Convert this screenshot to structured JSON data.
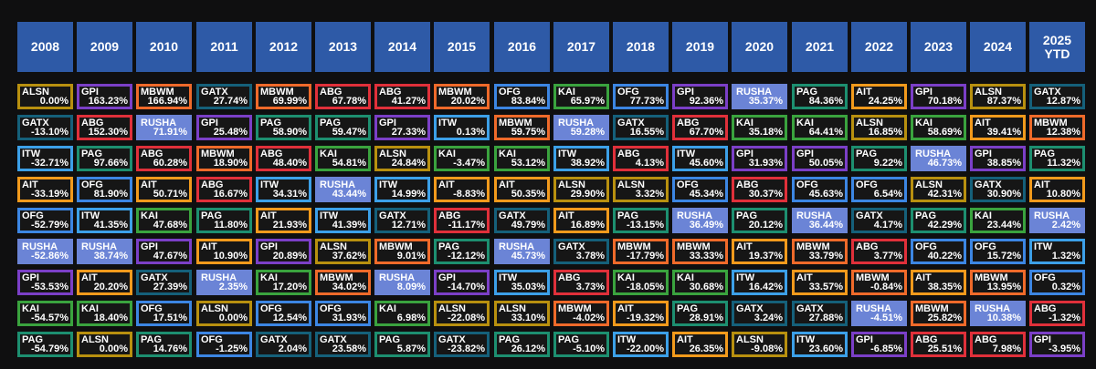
{
  "colors": {
    "header_bg": "#2e5aa7",
    "background": "#0f0f10",
    "cell_bg": "#161616",
    "tickers": {
      "ALSN": "#b8900f",
      "GPI": "#7b3fc7",
      "MBWM": "#ef6a2a",
      "GATX": "#15607a",
      "ABG": "#e0303a",
      "OFG": "#3c86e3",
      "KAI": "#3aa33e",
      "RUSHA": "#6b84d6",
      "PAG": "#1d8f70",
      "AIT": "#f29a1c",
      "ITW": "#3ca0e8"
    }
  },
  "chart_data": {
    "type": "table",
    "columns": [
      "2008",
      "2009",
      "2010",
      "2011",
      "2012",
      "2013",
      "2014",
      "2015",
      "2016",
      "2017",
      "2018",
      "2019",
      "2020",
      "2021",
      "2022",
      "2023",
      "2024",
      "2025\nYTD"
    ],
    "grid": [
      [
        [
          "ALSN",
          "0.00%"
        ],
        [
          "GPI",
          "163.23%"
        ],
        [
          "MBWM",
          "166.94%"
        ],
        [
          "GATX",
          "27.74%"
        ],
        [
          "MBWM",
          "69.99%"
        ],
        [
          "ABG",
          "67.78%"
        ],
        [
          "ABG",
          "41.27%"
        ],
        [
          "MBWM",
          "20.02%"
        ],
        [
          "OFG",
          "83.84%"
        ],
        [
          "KAI",
          "65.97%"
        ],
        [
          "OFG",
          "77.73%"
        ],
        [
          "GPI",
          "92.36%"
        ],
        [
          "RUSHA",
          "35.37%"
        ],
        [
          "PAG",
          "84.36%"
        ],
        [
          "AIT",
          "24.25%"
        ],
        [
          "GPI",
          "70.18%"
        ],
        [
          "ALSN",
          "87.37%"
        ],
        [
          "GATX",
          "12.87%"
        ]
      ],
      [
        [
          "GATX",
          "-13.10%"
        ],
        [
          "ABG",
          "152.30%"
        ],
        [
          "RUSHA",
          "71.91%"
        ],
        [
          "GPI",
          "25.48%"
        ],
        [
          "PAG",
          "58.90%"
        ],
        [
          "PAG",
          "59.47%"
        ],
        [
          "GPI",
          "27.33%"
        ],
        [
          "ITW",
          "0.13%"
        ],
        [
          "MBWM",
          "59.75%"
        ],
        [
          "RUSHA",
          "59.28%"
        ],
        [
          "GATX",
          "16.55%"
        ],
        [
          "ABG",
          "67.70%"
        ],
        [
          "KAI",
          "35.18%"
        ],
        [
          "KAI",
          "64.41%"
        ],
        [
          "ALSN",
          "16.85%"
        ],
        [
          "KAI",
          "58.69%"
        ],
        [
          "AIT",
          "39.41%"
        ],
        [
          "MBWM",
          "12.38%"
        ]
      ],
      [
        [
          "ITW",
          "-32.71%"
        ],
        [
          "PAG",
          "97.66%"
        ],
        [
          "ABG",
          "60.28%"
        ],
        [
          "MBWM",
          "18.90%"
        ],
        [
          "ABG",
          "48.40%"
        ],
        [
          "KAI",
          "54.81%"
        ],
        [
          "ALSN",
          "24.84%"
        ],
        [
          "KAI",
          "-3.47%"
        ],
        [
          "KAI",
          "53.12%"
        ],
        [
          "ITW",
          "38.92%"
        ],
        [
          "ABG",
          "4.13%"
        ],
        [
          "ITW",
          "45.60%"
        ],
        [
          "GPI",
          "31.93%"
        ],
        [
          "GPI",
          "50.05%"
        ],
        [
          "PAG",
          "9.22%"
        ],
        [
          "RUSHA",
          "46.73%"
        ],
        [
          "GPI",
          "38.85%"
        ],
        [
          "PAG",
          "11.32%"
        ]
      ],
      [
        [
          "AIT",
          "-33.19%"
        ],
        [
          "OFG",
          "81.90%"
        ],
        [
          "AIT",
          "50.71%"
        ],
        [
          "ABG",
          "16.67%"
        ],
        [
          "ITW",
          "34.31%"
        ],
        [
          "RUSHA",
          "43.44%"
        ],
        [
          "ITW",
          "14.99%"
        ],
        [
          "AIT",
          "-8.83%"
        ],
        [
          "AIT",
          "50.35%"
        ],
        [
          "ALSN",
          "29.90%"
        ],
        [
          "ALSN",
          "3.32%"
        ],
        [
          "OFG",
          "45.34%"
        ],
        [
          "ABG",
          "30.37%"
        ],
        [
          "OFG",
          "45.63%"
        ],
        [
          "OFG",
          "6.54%"
        ],
        [
          "ALSN",
          "42.31%"
        ],
        [
          "GATX",
          "30.90%"
        ],
        [
          "AIT",
          "10.80%"
        ]
      ],
      [
        [
          "OFG",
          "-52.79%"
        ],
        [
          "ITW",
          "41.35%"
        ],
        [
          "KAI",
          "47.68%"
        ],
        [
          "PAG",
          "11.80%"
        ],
        [
          "AIT",
          "21.93%"
        ],
        [
          "ITW",
          "41.39%"
        ],
        [
          "GATX",
          "12.71%"
        ],
        [
          "ABG",
          "-11.17%"
        ],
        [
          "GATX",
          "49.79%"
        ],
        [
          "AIT",
          "16.89%"
        ],
        [
          "PAG",
          "-13.15%"
        ],
        [
          "RUSHA",
          "36.49%"
        ],
        [
          "PAG",
          "20.12%"
        ],
        [
          "RUSHA",
          "36.44%"
        ],
        [
          "GATX",
          "4.17%"
        ],
        [
          "PAG",
          "42.29%"
        ],
        [
          "KAI",
          "23.44%"
        ],
        [
          "RUSHA",
          "2.42%"
        ]
      ],
      [
        [
          "RUSHA",
          "-52.86%"
        ],
        [
          "RUSHA",
          "38.74%"
        ],
        [
          "GPI",
          "47.67%"
        ],
        [
          "AIT",
          "10.90%"
        ],
        [
          "GPI",
          "20.89%"
        ],
        [
          "ALSN",
          "37.62%"
        ],
        [
          "MBWM",
          "9.01%"
        ],
        [
          "PAG",
          "-12.12%"
        ],
        [
          "RUSHA",
          "45.73%"
        ],
        [
          "GATX",
          "3.78%"
        ],
        [
          "MBWM",
          "-17.79%"
        ],
        [
          "MBWM",
          "33.33%"
        ],
        [
          "AIT",
          "19.37%"
        ],
        [
          "MBWM",
          "33.79%"
        ],
        [
          "ABG",
          "3.77%"
        ],
        [
          "OFG",
          "40.22%"
        ],
        [
          "OFG",
          "15.72%"
        ],
        [
          "ITW",
          "1.32%"
        ]
      ],
      [
        [
          "GPI",
          "-53.53%"
        ],
        [
          "AIT",
          "20.20%"
        ],
        [
          "GATX",
          "27.39%"
        ],
        [
          "RUSHA",
          "2.35%"
        ],
        [
          "KAI",
          "17.20%"
        ],
        [
          "MBWM",
          "34.02%"
        ],
        [
          "RUSHA",
          "8.09%"
        ],
        [
          "GPI",
          "-14.70%"
        ],
        [
          "ITW",
          "35.03%"
        ],
        [
          "ABG",
          "3.73%"
        ],
        [
          "KAI",
          "-18.05%"
        ],
        [
          "KAI",
          "30.68%"
        ],
        [
          "ITW",
          "16.42%"
        ],
        [
          "AIT",
          "33.57%"
        ],
        [
          "MBWM",
          "-0.84%"
        ],
        [
          "AIT",
          "38.35%"
        ],
        [
          "MBWM",
          "13.95%"
        ],
        [
          "OFG",
          "0.32%"
        ]
      ],
      [
        [
          "KAI",
          "-54.57%"
        ],
        [
          "KAI",
          "18.40%"
        ],
        [
          "OFG",
          "17.51%"
        ],
        [
          "ALSN",
          "0.00%"
        ],
        [
          "OFG",
          "12.54%"
        ],
        [
          "OFG",
          "31.93%"
        ],
        [
          "KAI",
          "6.98%"
        ],
        [
          "ALSN",
          "-22.08%"
        ],
        [
          "ALSN",
          "33.10%"
        ],
        [
          "MBWM",
          "-4.02%"
        ],
        [
          "AIT",
          "-19.32%"
        ],
        [
          "PAG",
          "28.91%"
        ],
        [
          "GATX",
          "3.24%"
        ],
        [
          "GATX",
          "27.88%"
        ],
        [
          "RUSHA",
          "-4.51%"
        ],
        [
          "MBWM",
          "25.82%"
        ],
        [
          "RUSHA",
          "10.38%"
        ],
        [
          "ABG",
          "-1.32%"
        ]
      ],
      [
        [
          "PAG",
          "-54.79%"
        ],
        [
          "ALSN",
          "0.00%"
        ],
        [
          "PAG",
          "14.76%"
        ],
        [
          "OFG",
          "-1.25%"
        ],
        [
          "GATX",
          "2.04%"
        ],
        [
          "GATX",
          "23.58%"
        ],
        [
          "PAG",
          "5.87%"
        ],
        [
          "GATX",
          "-23.82%"
        ],
        [
          "PAG",
          "26.12%"
        ],
        [
          "PAG",
          "-5.10%"
        ],
        [
          "ITW",
          "-22.00%"
        ],
        [
          "AIT",
          "26.35%"
        ],
        [
          "ALSN",
          "-9.08%"
        ],
        [
          "ITW",
          "23.60%"
        ],
        [
          "GPI",
          "-6.85%"
        ],
        [
          "ABG",
          "25.51%"
        ],
        [
          "ABG",
          "7.98%"
        ],
        [
          "GPI",
          "-3.95%"
        ]
      ]
    ]
  }
}
